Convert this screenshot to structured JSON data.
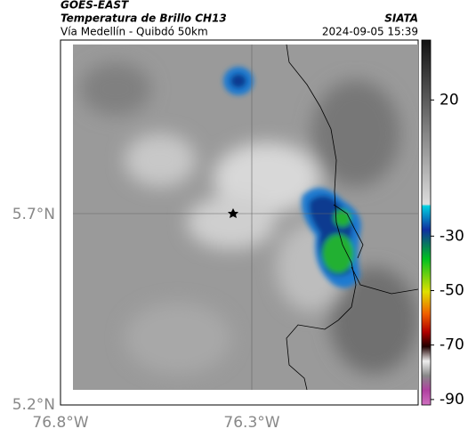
{
  "header": {
    "source": "GOES-EAST",
    "product": "Temperatura de Brillo CH13",
    "region": "Vía Medellín - Quibdó 50km",
    "agency": "SIATA",
    "timestamp": "2024-09-05 15:39"
  },
  "axes": {
    "lat_labels": [
      "5.7°N",
      "5.2°N"
    ],
    "lon_labels": [
      "76.8°W",
      "76.3°W"
    ]
  },
  "colorbar": {
    "range": [
      42,
      -92
    ],
    "ticks": [
      20,
      -30,
      -50,
      -70,
      -90
    ]
  }
}
